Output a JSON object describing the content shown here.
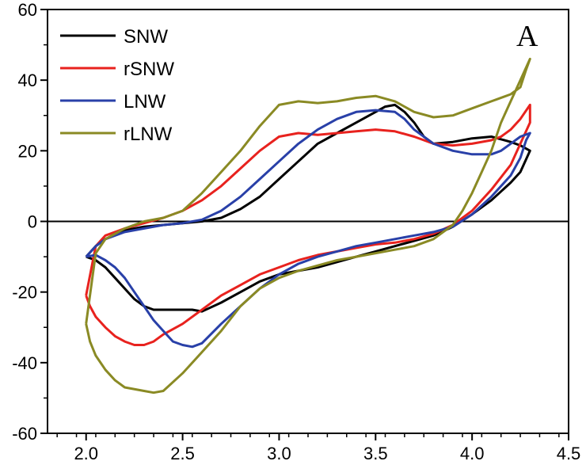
{
  "chart_data": {
    "type": "line",
    "title": "",
    "xlabel": "",
    "ylabel": "",
    "xlim": [
      1.8,
      4.5
    ],
    "ylim": [
      -60,
      60
    ],
    "xticks": [
      2.0,
      2.5,
      3.0,
      3.5,
      4.0,
      4.5
    ],
    "xtick_labels": [
      "2.0",
      "2.5",
      "3.0",
      "3.5",
      "4.0",
      "4.5"
    ],
    "yticks": [
      -60,
      -40,
      -20,
      0,
      20,
      40,
      60
    ],
    "ytick_labels": [
      "-60",
      "-40",
      "-20",
      "0",
      "20",
      "40",
      "60"
    ],
    "zero_line": true,
    "grid": false,
    "legend_position": "top-left",
    "panel_label": "A",
    "series": [
      {
        "name": "SNW",
        "color": "#000000",
        "points": [
          [
            2.0,
            -10
          ],
          [
            2.05,
            -11
          ],
          [
            2.1,
            -13
          ],
          [
            2.15,
            -16
          ],
          [
            2.2,
            -19
          ],
          [
            2.25,
            -22
          ],
          [
            2.3,
            -24
          ],
          [
            2.35,
            -25
          ],
          [
            2.45,
            -25
          ],
          [
            2.55,
            -25
          ],
          [
            2.6,
            -25.5
          ],
          [
            2.7,
            -23
          ],
          [
            2.8,
            -20
          ],
          [
            2.9,
            -17
          ],
          [
            3.0,
            -15
          ],
          [
            3.1,
            -14
          ],
          [
            3.2,
            -13
          ],
          [
            3.3,
            -11.5
          ],
          [
            3.4,
            -10
          ],
          [
            3.5,
            -8.5
          ],
          [
            3.6,
            -7
          ],
          [
            3.7,
            -5.5
          ],
          [
            3.8,
            -4
          ],
          [
            3.9,
            -1.5
          ],
          [
            4.0,
            2
          ],
          [
            4.1,
            6
          ],
          [
            4.2,
            11
          ],
          [
            4.25,
            14
          ],
          [
            4.3,
            20
          ],
          [
            4.25,
            21.5
          ],
          [
            4.2,
            22.5
          ],
          [
            4.1,
            24
          ],
          [
            4.0,
            23.5
          ],
          [
            3.9,
            22.5
          ],
          [
            3.8,
            22
          ],
          [
            3.75,
            24
          ],
          [
            3.7,
            28
          ],
          [
            3.65,
            31
          ],
          [
            3.6,
            33
          ],
          [
            3.55,
            32.5
          ],
          [
            3.5,
            31
          ],
          [
            3.4,
            28
          ],
          [
            3.3,
            25
          ],
          [
            3.2,
            22
          ],
          [
            3.1,
            17
          ],
          [
            3.0,
            12
          ],
          [
            2.9,
            7
          ],
          [
            2.8,
            3.5
          ],
          [
            2.7,
            1
          ],
          [
            2.6,
            0
          ],
          [
            2.5,
            -0.5
          ],
          [
            2.4,
            -1
          ],
          [
            2.3,
            -1.5
          ],
          [
            2.2,
            -2.5
          ],
          [
            2.1,
            -5
          ],
          [
            2.05,
            -7
          ],
          [
            2.0,
            -10
          ]
        ]
      },
      {
        "name": "rSNW",
        "color": "#e8221e",
        "points": [
          [
            2.0,
            -21
          ],
          [
            2.02,
            -24
          ],
          [
            2.05,
            -27
          ],
          [
            2.1,
            -30
          ],
          [
            2.15,
            -32.5
          ],
          [
            2.2,
            -34
          ],
          [
            2.25,
            -35
          ],
          [
            2.3,
            -35
          ],
          [
            2.35,
            -34
          ],
          [
            2.4,
            -32
          ],
          [
            2.5,
            -29
          ],
          [
            2.6,
            -25
          ],
          [
            2.7,
            -21
          ],
          [
            2.8,
            -18
          ],
          [
            2.9,
            -15
          ],
          [
            3.0,
            -13
          ],
          [
            3.1,
            -11
          ],
          [
            3.2,
            -9.5
          ],
          [
            3.3,
            -8.5
          ],
          [
            3.4,
            -7.5
          ],
          [
            3.5,
            -6.5
          ],
          [
            3.6,
            -6
          ],
          [
            3.7,
            -5
          ],
          [
            3.8,
            -3.5
          ],
          [
            3.9,
            -1
          ],
          [
            4.0,
            3
          ],
          [
            4.1,
            9
          ],
          [
            4.2,
            16
          ],
          [
            4.25,
            22
          ],
          [
            4.3,
            28
          ],
          [
            4.3,
            33
          ],
          [
            4.25,
            29
          ],
          [
            4.2,
            26
          ],
          [
            4.15,
            24
          ],
          [
            4.1,
            23
          ],
          [
            4.0,
            22
          ],
          [
            3.9,
            21.5
          ],
          [
            3.8,
            22
          ],
          [
            3.7,
            24
          ],
          [
            3.6,
            25.5
          ],
          [
            3.5,
            26
          ],
          [
            3.4,
            25.5
          ],
          [
            3.3,
            25
          ],
          [
            3.2,
            24.5
          ],
          [
            3.1,
            25
          ],
          [
            3.0,
            24
          ],
          [
            2.9,
            20
          ],
          [
            2.8,
            15
          ],
          [
            2.7,
            10
          ],
          [
            2.6,
            6
          ],
          [
            2.5,
            3
          ],
          [
            2.4,
            1
          ],
          [
            2.3,
            -0.5
          ],
          [
            2.2,
            -2
          ],
          [
            2.1,
            -4
          ],
          [
            2.05,
            -7
          ],
          [
            2.0,
            -21
          ]
        ]
      },
      {
        "name": "LNW",
        "color": "#2940a8",
        "points": [
          [
            2.0,
            -10
          ],
          [
            2.05,
            -9.5
          ],
          [
            2.1,
            -11
          ],
          [
            2.15,
            -13
          ],
          [
            2.2,
            -16
          ],
          [
            2.25,
            -20
          ],
          [
            2.3,
            -24
          ],
          [
            2.35,
            -28
          ],
          [
            2.4,
            -31
          ],
          [
            2.45,
            -34
          ],
          [
            2.5,
            -35
          ],
          [
            2.55,
            -35.5
          ],
          [
            2.6,
            -34.5
          ],
          [
            2.7,
            -29
          ],
          [
            2.8,
            -24
          ],
          [
            2.9,
            -19
          ],
          [
            3.0,
            -15
          ],
          [
            3.1,
            -12
          ],
          [
            3.2,
            -10
          ],
          [
            3.3,
            -8.5
          ],
          [
            3.4,
            -7
          ],
          [
            3.5,
            -6
          ],
          [
            3.6,
            -5
          ],
          [
            3.7,
            -4
          ],
          [
            3.8,
            -3
          ],
          [
            3.9,
            -1.5
          ],
          [
            4.0,
            2
          ],
          [
            4.1,
            7
          ],
          [
            4.15,
            10
          ],
          [
            4.2,
            13
          ],
          [
            4.25,
            18
          ],
          [
            4.28,
            23
          ],
          [
            4.3,
            25
          ],
          [
            4.25,
            24
          ],
          [
            4.2,
            22
          ],
          [
            4.15,
            20
          ],
          [
            4.1,
            19
          ],
          [
            4.0,
            19
          ],
          [
            3.9,
            20
          ],
          [
            3.8,
            22
          ],
          [
            3.7,
            26
          ],
          [
            3.65,
            29
          ],
          [
            3.6,
            31
          ],
          [
            3.5,
            31.5
          ],
          [
            3.4,
            31
          ],
          [
            3.3,
            29
          ],
          [
            3.2,
            26
          ],
          [
            3.1,
            22
          ],
          [
            3.0,
            17
          ],
          [
            2.9,
            12
          ],
          [
            2.8,
            7
          ],
          [
            2.7,
            3
          ],
          [
            2.6,
            0.5
          ],
          [
            2.5,
            -0.5
          ],
          [
            2.4,
            -1
          ],
          [
            2.3,
            -2
          ],
          [
            2.2,
            -3
          ],
          [
            2.1,
            -5
          ],
          [
            2.05,
            -7
          ],
          [
            2.0,
            -10
          ]
        ]
      },
      {
        "name": "rLNW",
        "color": "#8a8a24",
        "points": [
          [
            2.0,
            -29
          ],
          [
            2.02,
            -34
          ],
          [
            2.05,
            -38
          ],
          [
            2.1,
            -42
          ],
          [
            2.15,
            -45
          ],
          [
            2.2,
            -47
          ],
          [
            2.3,
            -48
          ],
          [
            2.35,
            -48.5
          ],
          [
            2.4,
            -48
          ],
          [
            2.5,
            -43
          ],
          [
            2.6,
            -37
          ],
          [
            2.7,
            -31
          ],
          [
            2.8,
            -24
          ],
          [
            2.9,
            -19
          ],
          [
            3.0,
            -16
          ],
          [
            3.1,
            -14
          ],
          [
            3.2,
            -12.5
          ],
          [
            3.3,
            -11
          ],
          [
            3.4,
            -10
          ],
          [
            3.5,
            -9
          ],
          [
            3.6,
            -8
          ],
          [
            3.7,
            -7
          ],
          [
            3.8,
            -5
          ],
          [
            3.9,
            -1
          ],
          [
            3.95,
            3
          ],
          [
            4.0,
            8
          ],
          [
            4.05,
            14
          ],
          [
            4.1,
            20
          ],
          [
            4.15,
            28
          ],
          [
            4.2,
            34
          ],
          [
            4.25,
            40
          ],
          [
            4.3,
            46
          ],
          [
            4.28,
            43
          ],
          [
            4.25,
            38
          ],
          [
            4.2,
            36
          ],
          [
            4.1,
            34
          ],
          [
            4.0,
            32
          ],
          [
            3.9,
            30
          ],
          [
            3.8,
            29.5
          ],
          [
            3.7,
            31
          ],
          [
            3.6,
            34
          ],
          [
            3.5,
            35.5
          ],
          [
            3.4,
            35
          ],
          [
            3.3,
            34
          ],
          [
            3.2,
            33.5
          ],
          [
            3.1,
            34
          ],
          [
            3.0,
            33
          ],
          [
            2.9,
            27
          ],
          [
            2.8,
            20
          ],
          [
            2.7,
            14
          ],
          [
            2.6,
            8
          ],
          [
            2.5,
            3
          ],
          [
            2.4,
            1
          ],
          [
            2.3,
            0
          ],
          [
            2.2,
            -2
          ],
          [
            2.1,
            -5
          ],
          [
            2.05,
            -9
          ],
          [
            2.0,
            -29
          ]
        ]
      }
    ]
  }
}
